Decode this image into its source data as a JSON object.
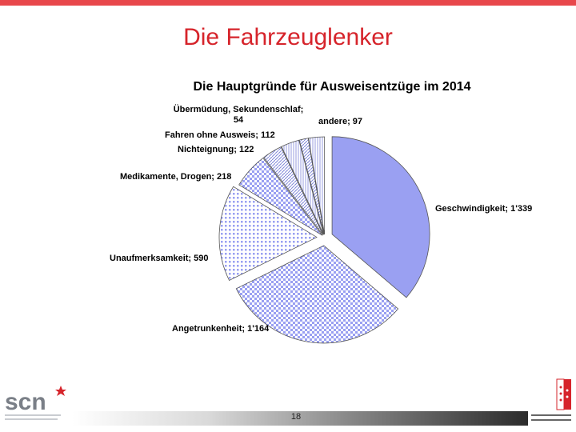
{
  "slide": {
    "title": "Die Fahrzeuglenker",
    "page_number": "18"
  },
  "colors": {
    "accent_red": "#d6242b",
    "pie_fill": "#9aa0f2",
    "pie_stroke": "#555555"
  },
  "logos": {
    "left_name": "scn-logo",
    "left_text": "scn",
    "right_name": "canton-du-valais-logo"
  },
  "chart_data": {
    "type": "pie",
    "title": "Die Hauptgründe für Ausweisentzüge im 2014",
    "slices": [
      {
        "label": "Geschwindigkeit",
        "value": 1339,
        "value_text": "1'339",
        "display": "Geschwindigkeit; 1'339"
      },
      {
        "label": "Angetrunkenheit",
        "value": 1164,
        "value_text": "1'164",
        "display": "Angetrunkenheit; 1'164"
      },
      {
        "label": "Unaufmerksamkeit",
        "value": 590,
        "value_text": "590",
        "display": "Unaufmerksamkeit; 590"
      },
      {
        "label": "Medikamente, Drogen",
        "value": 218,
        "value_text": "218",
        "display": "Medikamente, Drogen; 218"
      },
      {
        "label": "Nichteignung",
        "value": 122,
        "value_text": "122",
        "display": "Nichteignung; 122"
      },
      {
        "label": "Fahren ohne Ausweis",
        "value": 112,
        "value_text": "112",
        "display": "Fahren ohne Ausweis; 112"
      },
      {
        "label": "Übermüdung, Sekundenschlaf",
        "value": 54,
        "value_text": "54",
        "display": "Übermüdung, Sekundenschlaf; 54"
      },
      {
        "label": "andere",
        "value": 97,
        "value_text": "97",
        "display": "andere; 97"
      }
    ],
    "legend": "none",
    "data_labels": true
  }
}
